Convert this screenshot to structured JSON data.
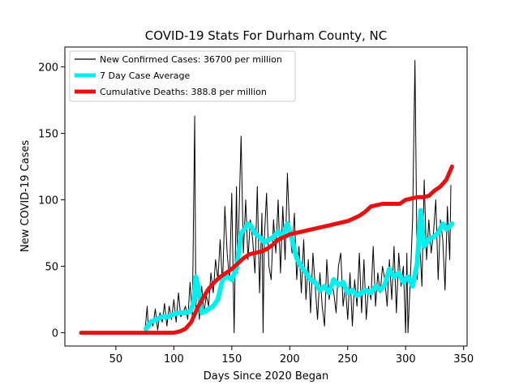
{
  "chart_data": {
    "type": "line",
    "title": "COVID-19 Stats For Durham County, NC",
    "xlabel": "Days Since 2020 Began",
    "ylabel": "New COVID-19 Cases",
    "xlim": [
      6,
      353
    ],
    "ylim": [
      -10,
      215
    ],
    "xticks": [
      50,
      100,
      150,
      200,
      250,
      300,
      350
    ],
    "yticks": [
      0,
      50,
      100,
      150,
      200
    ],
    "grid": false,
    "legend_position": "top-left",
    "series": [
      {
        "name": "New Confirmed Cases: 36700 per million",
        "color": "#000000",
        "x": [
          75,
          77,
          78,
          80,
          82,
          84,
          86,
          88,
          90,
          92,
          94,
          96,
          98,
          100,
          102,
          104,
          106,
          108,
          110,
          112,
          114,
          116,
          118,
          119,
          120,
          122,
          124,
          126,
          128,
          130,
          132,
          134,
          136,
          138,
          140,
          142,
          144,
          146,
          148,
          150,
          152,
          154,
          155,
          156,
          158,
          160,
          162,
          164,
          166,
          168,
          170,
          172,
          174,
          176,
          177,
          178,
          180,
          182,
          184,
          186,
          188,
          190,
          192,
          194,
          196,
          198,
          200,
          202,
          204,
          206,
          208,
          210,
          212,
          214,
          216,
          218,
          220,
          222,
          224,
          226,
          228,
          230,
          232,
          234,
          236,
          238,
          240,
          242,
          244,
          246,
          248,
          250,
          252,
          254,
          256,
          258,
          260,
          262,
          264,
          266,
          268,
          270,
          272,
          274,
          276,
          278,
          280,
          282,
          284,
          286,
          288,
          290,
          292,
          294,
          296,
          298,
          300,
          301,
          302,
          304,
          306,
          308,
          310,
          312,
          314,
          316,
          318,
          320,
          322,
          324,
          326,
          328,
          330,
          332,
          334,
          336,
          338,
          339
        ],
        "values": [
          0,
          20,
          3,
          10,
          5,
          18,
          2,
          15,
          8,
          22,
          5,
          20,
          10,
          25,
          8,
          30,
          12,
          15,
          20,
          10,
          38,
          12,
          163,
          18,
          40,
          10,
          35,
          15,
          28,
          20,
          45,
          30,
          55,
          40,
          70,
          35,
          95,
          60,
          40,
          105,
          0,
          110,
          45,
          80,
          148,
          60,
          100,
          55,
          85,
          70,
          45,
          110,
          30,
          90,
          0,
          70,
          105,
          50,
          40,
          85,
          60,
          100,
          45,
          95,
          55,
          120,
          75,
          60,
          90,
          40,
          65,
          30,
          70,
          25,
          55,
          15,
          60,
          35,
          10,
          45,
          20,
          5,
          55,
          25,
          40,
          30,
          15,
          50,
          60,
          20,
          35,
          10,
          45,
          5,
          40,
          20,
          60,
          15,
          55,
          10,
          35,
          25,
          65,
          20,
          45,
          30,
          50,
          40,
          20,
          55,
          25,
          65,
          15,
          60,
          35,
          50,
          0,
          60,
          0,
          40,
          85,
          205,
          40,
          70,
          35,
          115,
          55,
          85,
          60,
          75,
          100,
          40,
          85,
          70,
          32,
          95,
          55,
          111
        ],
        "stroke_width": 1
      },
      {
        "name": "7 Day Case Average",
        "color": "#00f0f0",
        "x": [
          76,
          80,
          85,
          90,
          95,
          100,
          105,
          110,
          114,
          117,
          119,
          121,
          124,
          127,
          130,
          134,
          138,
          142,
          146,
          150,
          154,
          158,
          161,
          164,
          167,
          170,
          174,
          178,
          182,
          186,
          190,
          194,
          198,
          202,
          206,
          210,
          214,
          218,
          222,
          226,
          230,
          234,
          238,
          242,
          246,
          250,
          254,
          258,
          262,
          266,
          270,
          274,
          278,
          282,
          286,
          290,
          294,
          298,
          302,
          306,
          310,
          313,
          316,
          320,
          324,
          328,
          332,
          335,
          338,
          340
        ],
        "values": [
          3,
          8,
          10,
          12,
          12,
          14,
          15,
          15,
          16,
          22,
          42,
          35,
          15,
          16,
          18,
          20,
          25,
          40,
          42,
          40,
          48,
          75,
          78,
          82,
          80,
          75,
          72,
          68,
          70,
          72,
          76,
          72,
          82,
          70,
          56,
          50,
          45,
          40,
          38,
          32,
          35,
          30,
          40,
          36,
          38,
          30,
          32,
          28,
          30,
          32,
          30,
          35,
          32,
          36,
          48,
          42,
          45,
          38,
          42,
          35,
          52,
          92,
          65,
          70,
          72,
          75,
          82,
          78,
          80,
          82
        ],
        "stroke_width": 6
      },
      {
        "name": "Cumulative Deaths: 388.8 per million",
        "color": "#e81010",
        "x": [
          20,
          40,
          60,
          80,
          90,
          100,
          105,
          110,
          115,
          120,
          125,
          130,
          135,
          140,
          145,
          150,
          155,
          160,
          165,
          170,
          175,
          180,
          185,
          190,
          195,
          200,
          205,
          210,
          215,
          220,
          225,
          230,
          235,
          240,
          245,
          250,
          255,
          260,
          265,
          270,
          275,
          280,
          285,
          290,
          295,
          300,
          305,
          310,
          315,
          320,
          325,
          330,
          335,
          340
        ],
        "values": [
          0,
          0,
          0,
          0,
          0,
          0,
          1,
          3,
          8,
          18,
          26,
          33,
          38,
          42,
          45,
          48,
          52,
          56,
          59,
          60,
          61,
          63,
          66,
          70,
          72,
          74,
          75,
          76,
          77,
          78,
          79,
          80,
          81,
          82,
          83,
          84,
          86,
          88,
          91,
          95,
          96,
          97,
          97,
          97,
          97,
          100,
          101,
          102,
          102,
          103,
          107,
          110,
          115,
          125
        ],
        "stroke_width": 5
      }
    ]
  }
}
